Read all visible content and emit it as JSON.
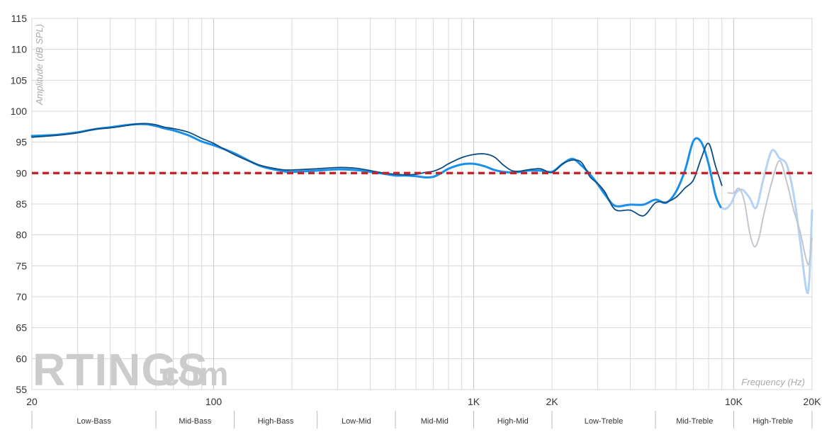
{
  "chart_data": {
    "type": "line",
    "xlabel": "Frequency (Hz)",
    "ylabel": "Amplitude (dB SPL)",
    "x_scale": "log",
    "xlim": [
      20,
      20000
    ],
    "ylim": [
      55,
      115
    ],
    "y_ticks": [
      55,
      60,
      65,
      70,
      75,
      80,
      85,
      90,
      95,
      100,
      105,
      110,
      115
    ],
    "x_tick_labels": [
      {
        "value": 20,
        "label": "20"
      },
      {
        "value": 100,
        "label": "100"
      },
      {
        "value": 1000,
        "label": "1K"
      },
      {
        "value": 2000,
        "label": "2K"
      },
      {
        "value": 10000,
        "label": "10K"
      },
      {
        "value": 20000,
        "label": "20K"
      }
    ],
    "grid": true,
    "reference_line": {
      "y": 90,
      "color": "#c0262d",
      "style": "dashed"
    },
    "bands": [
      {
        "label": "Low-Bass",
        "from": 20,
        "to": 60
      },
      {
        "label": "Mid-Bass",
        "from": 60,
        "to": 120
      },
      {
        "label": "High-Bass",
        "from": 120,
        "to": 250
      },
      {
        "label": "Low-Mid",
        "from": 250,
        "to": 500
      },
      {
        "label": "Mid-Mid",
        "from": 500,
        "to": 1000
      },
      {
        "label": "High-Mid",
        "from": 1000,
        "to": 2000
      },
      {
        "label": "Low-Treble",
        "from": 2000,
        "to": 5000
      },
      {
        "label": "Mid-Treble",
        "from": 5000,
        "to": 10000
      },
      {
        "label": "High-Treble",
        "from": 10000,
        "to": 20000
      }
    ],
    "series": [
      {
        "color": "#1a8fe8",
        "faded_color": "#b5d3f5",
        "faded_from": 8900,
        "x": [
          20,
          25,
          30,
          35,
          40,
          45,
          50,
          55,
          60,
          65,
          70,
          80,
          90,
          100,
          120,
          150,
          180,
          200,
          250,
          300,
          350,
          400,
          450,
          500,
          550,
          600,
          650,
          700,
          750,
          800,
          900,
          1000,
          1100,
          1200,
          1300,
          1400,
          1500,
          1600,
          1800,
          2000,
          2200,
          2400,
          2600,
          2800,
          3000,
          3200,
          3500,
          4000,
          4500,
          5000,
          5500,
          6000,
          6500,
          7000,
          7500,
          8000,
          8500,
          8900,
          9300,
          9800,
          10200,
          10800,
          11500,
          12200,
          13000,
          14000,
          15000,
          16000,
          17000,
          18000,
          19000,
          19500,
          20000
        ],
        "y": [
          96.0,
          96.2,
          96.6,
          97.1,
          97.4,
          97.7,
          97.9,
          97.9,
          97.6,
          97.2,
          96.9,
          96.1,
          95.1,
          94.5,
          93.2,
          91.2,
          90.4,
          90.2,
          90.4,
          90.6,
          90.5,
          90.2,
          89.9,
          89.6,
          89.6,
          89.5,
          89.3,
          89.4,
          90.0,
          90.7,
          91.4,
          91.5,
          91.1,
          90.5,
          90.2,
          90.1,
          90.2,
          90.4,
          90.4,
          90.2,
          91.5,
          92.3,
          91.2,
          89.8,
          88.2,
          86.5,
          84.7,
          84.9,
          84.9,
          85.7,
          85.2,
          87.0,
          90.5,
          95.2,
          95.0,
          91.5,
          86.5,
          84.5,
          84.2,
          85.2,
          86.8,
          87.3,
          86.0,
          84.4,
          89.0,
          93.6,
          92.4,
          91.3,
          86.5,
          79.0,
          71.2,
          72.5,
          84.0
        ]
      },
      {
        "color": "#0e4d82",
        "faded_color": "#c2c6cf",
        "faded_from": 9100,
        "x": [
          20,
          25,
          30,
          35,
          40,
          45,
          50,
          55,
          60,
          65,
          70,
          80,
          90,
          100,
          120,
          150,
          180,
          200,
          250,
          300,
          350,
          400,
          450,
          500,
          550,
          600,
          650,
          700,
          750,
          800,
          900,
          1000,
          1100,
          1200,
          1300,
          1400,
          1500,
          1600,
          1800,
          2000,
          2200,
          2400,
          2600,
          2800,
          3000,
          3200,
          3500,
          4000,
          4500,
          5000,
          5500,
          6000,
          6500,
          7000,
          7500,
          8000,
          8500,
          9000,
          9500,
          10000,
          10500,
          11000,
          11500,
          12000,
          12500,
          13000,
          14000,
          15000,
          16000,
          17000,
          18000,
          19000,
          19500,
          20000
        ],
        "y": [
          95.8,
          96.1,
          96.5,
          97.1,
          97.3,
          97.6,
          97.9,
          98.0,
          97.8,
          97.4,
          97.2,
          96.6,
          95.6,
          94.8,
          93.0,
          91.3,
          90.6,
          90.5,
          90.7,
          90.9,
          90.8,
          90.4,
          90.0,
          89.8,
          89.7,
          89.8,
          90.1,
          90.3,
          90.8,
          91.5,
          92.5,
          93.0,
          93.1,
          92.6,
          91.3,
          90.4,
          90.3,
          90.5,
          90.7,
          90.1,
          91.5,
          92.1,
          91.7,
          89.4,
          88.3,
          86.9,
          84.1,
          84.0,
          83.1,
          85.2,
          85.3,
          86.1,
          87.6,
          88.9,
          92.4,
          94.8,
          91.2,
          88.0,
          86.8,
          86.8,
          87.5,
          85.3,
          80.5,
          78.1,
          79.5,
          83.0,
          88.5,
          92.0,
          88.5,
          84.0,
          80.5,
          76.0,
          75.5,
          79.5
        ]
      }
    ]
  },
  "watermark": {
    "brand": "RTINGS",
    "suffix": ".com"
  },
  "colors": {
    "grid": "#d9d9d9",
    "accent": "#c0262d",
    "line_light": "#1a8fe8",
    "line_dark": "#0e4d82"
  }
}
